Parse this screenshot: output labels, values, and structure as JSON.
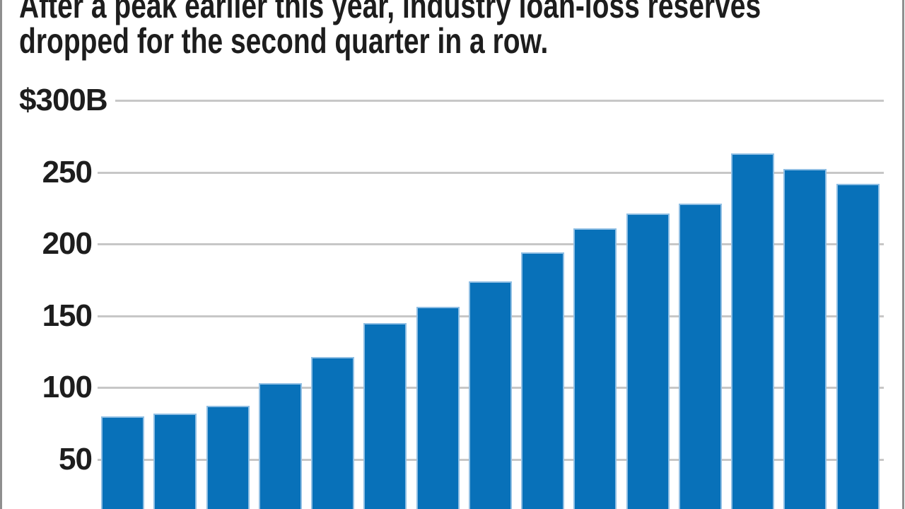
{
  "graphic": {
    "title_line1": "After a peak earlier this year, industry loan-loss reserves",
    "title_line2": "dropped for the second quarter in a row.",
    "colors": {
      "bar_fill": "#0871b9",
      "bar_edge": "#90bfe4",
      "gridline": "#c7c7c7",
      "side_border": "#8f8f8f",
      "text": "#1d1d1d",
      "background": "#ffffff"
    }
  },
  "chart_data": {
    "type": "bar",
    "title": "After a peak earlier this year, industry loan-loss reserves dropped for the second quarter in a row.",
    "values": [
      80,
      82,
      87,
      103,
      121,
      145,
      156,
      174,
      194,
      211,
      221,
      228,
      263,
      252,
      242
    ],
    "y_ticks": [
      {
        "value": 300,
        "label": "$300B"
      },
      {
        "value": 250,
        "label": "250"
      },
      {
        "value": 200,
        "label": "200"
      },
      {
        "value": 150,
        "label": "150"
      },
      {
        "value": 100,
        "label": "100"
      },
      {
        "value": 50,
        "label": "50"
      }
    ],
    "ylim": [
      0,
      300
    ],
    "xlabel": "",
    "ylabel": "$300B",
    "grid": true,
    "legend": false,
    "x_tick_labels_visible": false
  }
}
